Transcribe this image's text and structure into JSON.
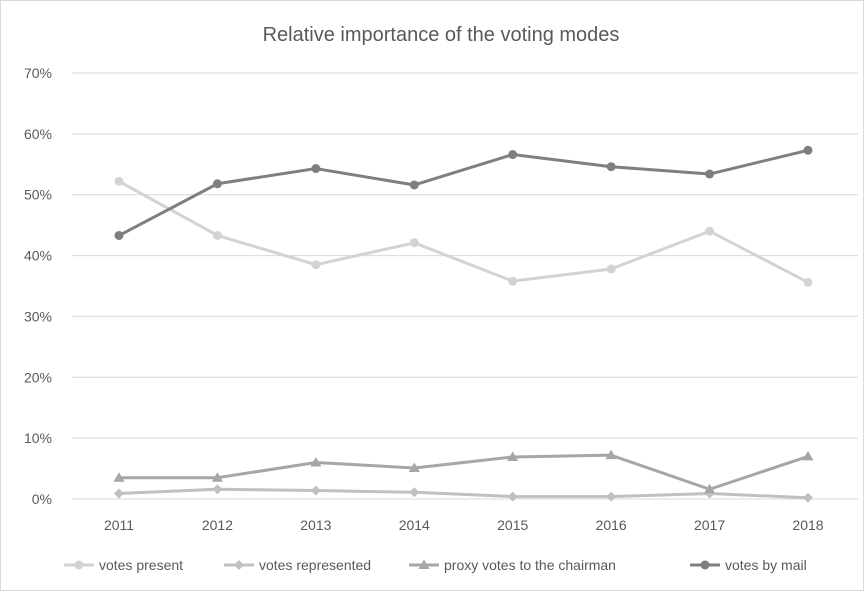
{
  "chart_data": {
    "type": "line",
    "title": "Relative importance of the voting modes",
    "xlabel": "",
    "ylabel": "",
    "categories": [
      "2011",
      "2012",
      "2013",
      "2014",
      "2015",
      "2016",
      "2017",
      "2018"
    ],
    "ylim": [
      0,
      70
    ],
    "yticks": [
      "0%",
      "10%",
      "20%",
      "30%",
      "40%",
      "50%",
      "60%",
      "70%"
    ],
    "grid": true,
    "legend_position": "bottom",
    "series": [
      {
        "name": "votes present",
        "color": "#d3d3d3",
        "marker": "circle",
        "values": [
          52.2,
          43.3,
          38.5,
          42.1,
          35.8,
          37.8,
          44.0,
          35.6
        ]
      },
      {
        "name": "votes represented",
        "color": "#c0c0c0",
        "marker": "diamond",
        "values": [
          0.9,
          1.6,
          1.4,
          1.1,
          0.4,
          0.4,
          0.9,
          0.2
        ]
      },
      {
        "name": "proxy votes to the chairman",
        "color": "#a6a6a6",
        "marker": "triangle",
        "values": [
          3.5,
          3.5,
          6.0,
          5.1,
          6.9,
          7.2,
          1.6,
          7.0
        ]
      },
      {
        "name": "votes by mail",
        "color": "#7f7f7f",
        "marker": "circle",
        "values": [
          43.3,
          51.8,
          54.3,
          51.6,
          56.6,
          54.6,
          53.4,
          57.3
        ]
      }
    ]
  }
}
